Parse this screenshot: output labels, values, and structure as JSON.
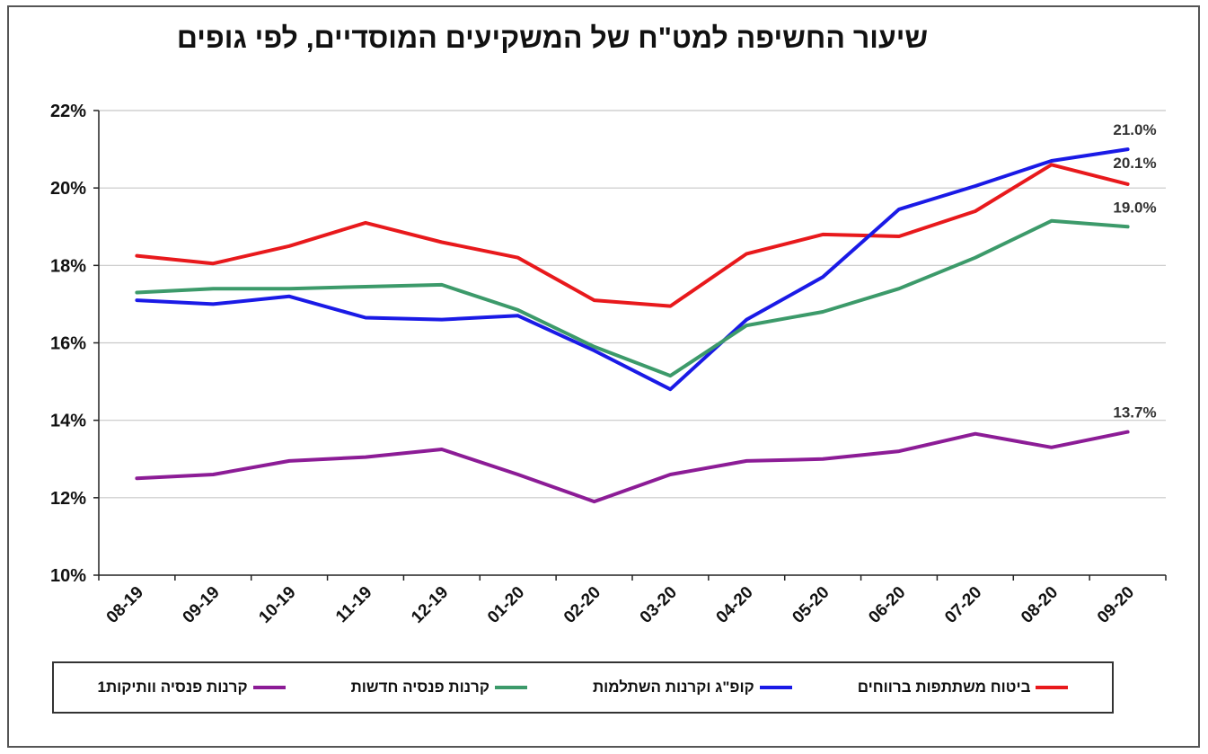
{
  "chart_data": {
    "type": "line",
    "title": "שיעור החשיפה למט\"ח של המשקיעים המוסדיים, לפי גופים",
    "categories": [
      "08-19",
      "09-19",
      "10-19",
      "11-19",
      "12-19",
      "01-20",
      "02-20",
      "03-20",
      "04-20",
      "05-20",
      "06-20",
      "07-20",
      "08-20",
      "09-20"
    ],
    "y_ticks": [
      "10%",
      "12%",
      "14%",
      "16%",
      "18%",
      "20%",
      "22%"
    ],
    "ylim": [
      10,
      22
    ],
    "y_step": 2,
    "grid": true,
    "legend_position": "bottom",
    "series": [
      {
        "name": "ביטוח משתתפות ברווחים",
        "color": "#e8191c",
        "values": [
          18.25,
          18.05,
          18.5,
          19.1,
          18.6,
          18.2,
          17.1,
          16.95,
          18.3,
          18.8,
          18.75,
          19.4,
          20.6,
          20.1
        ],
        "end_label": "20.1%"
      },
      {
        "name": "קופ\"ג וקרנות השתלמות",
        "color": "#1a1ae6",
        "values": [
          17.1,
          17.0,
          17.2,
          16.65,
          16.6,
          16.7,
          15.8,
          14.8,
          16.6,
          17.7,
          19.45,
          20.05,
          20.7,
          21.0
        ],
        "end_label": "21.0%"
      },
      {
        "name": "קרנות פנסיה חדשות",
        "color": "#3c9a6a",
        "values": [
          17.3,
          17.4,
          17.4,
          17.45,
          17.5,
          16.85,
          15.9,
          15.15,
          16.45,
          16.8,
          17.4,
          18.2,
          19.15,
          19.0
        ],
        "end_label": "19.0%"
      },
      {
        "name": "קרנות פנסיה וותיקות1",
        "color": "#8c1c96",
        "values": [
          12.5,
          12.6,
          12.95,
          13.05,
          13.25,
          12.6,
          11.9,
          12.6,
          12.95,
          13.0,
          13.2,
          13.65,
          13.3,
          13.7
        ],
        "end_label": "13.7%"
      }
    ]
  }
}
